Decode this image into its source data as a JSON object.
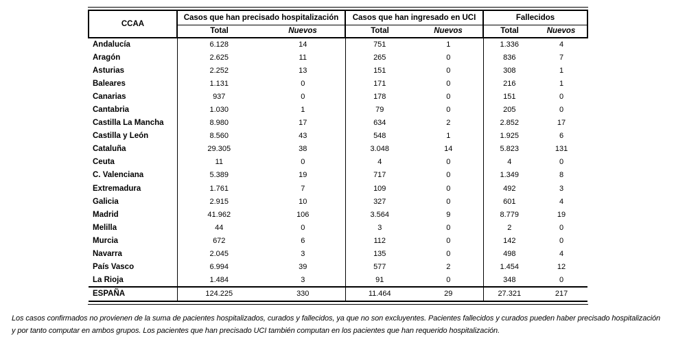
{
  "table": {
    "ccaa_header": "CCAA",
    "groups": [
      {
        "label": "Casos que han precisado hospitalización"
      },
      {
        "label": "Casos que han ingresado en UCI"
      },
      {
        "label": "Fallecidos"
      }
    ],
    "subheaders": {
      "total": "Total",
      "nuevos": "Nuevos"
    },
    "rows": [
      {
        "ccaa": "Andalucía",
        "hosp_total": "6.128",
        "hosp_nuevos": "14",
        "uci_total": "751",
        "uci_nuevos": "1",
        "fall_total": "1.336",
        "fall_nuevos": "4"
      },
      {
        "ccaa": "Aragón",
        "hosp_total": "2.625",
        "hosp_nuevos": "11",
        "uci_total": "265",
        "uci_nuevos": "0",
        "fall_total": "836",
        "fall_nuevos": "7"
      },
      {
        "ccaa": "Asturias",
        "hosp_total": "2.252",
        "hosp_nuevos": "13",
        "uci_total": "151",
        "uci_nuevos": "0",
        "fall_total": "308",
        "fall_nuevos": "1"
      },
      {
        "ccaa": "Baleares",
        "hosp_total": "1.131",
        "hosp_nuevos": "0",
        "uci_total": "171",
        "uci_nuevos": "0",
        "fall_total": "216",
        "fall_nuevos": "1"
      },
      {
        "ccaa": "Canarias",
        "hosp_total": "937",
        "hosp_nuevos": "0",
        "uci_total": "178",
        "uci_nuevos": "0",
        "fall_total": "151",
        "fall_nuevos": "0"
      },
      {
        "ccaa": "Cantabria",
        "hosp_total": "1.030",
        "hosp_nuevos": "1",
        "uci_total": "79",
        "uci_nuevos": "0",
        "fall_total": "205",
        "fall_nuevos": "0"
      },
      {
        "ccaa": "Castilla La Mancha",
        "hosp_total": "8.980",
        "hosp_nuevos": "17",
        "uci_total": "634",
        "uci_nuevos": "2",
        "fall_total": "2.852",
        "fall_nuevos": "17"
      },
      {
        "ccaa": "Castilla y León",
        "hosp_total": "8.560",
        "hosp_nuevos": "43",
        "uci_total": "548",
        "uci_nuevos": "1",
        "fall_total": "1.925",
        "fall_nuevos": "6"
      },
      {
        "ccaa": "Cataluña",
        "hosp_total": "29.305",
        "hosp_nuevos": "38",
        "uci_total": "3.048",
        "uci_nuevos": "14",
        "fall_total": "5.823",
        "fall_nuevos": "131"
      },
      {
        "ccaa": "Ceuta",
        "hosp_total": "11",
        "hosp_nuevos": "0",
        "uci_total": "4",
        "uci_nuevos": "0",
        "fall_total": "4",
        "fall_nuevos": "0"
      },
      {
        "ccaa": "C. Valenciana",
        "hosp_total": "5.389",
        "hosp_nuevos": "19",
        "uci_total": "717",
        "uci_nuevos": "0",
        "fall_total": "1.349",
        "fall_nuevos": "8"
      },
      {
        "ccaa": "Extremadura",
        "hosp_total": "1.761",
        "hosp_nuevos": "7",
        "uci_total": "109",
        "uci_nuevos": "0",
        "fall_total": "492",
        "fall_nuevos": "3"
      },
      {
        "ccaa": "Galicia",
        "hosp_total": "2.915",
        "hosp_nuevos": "10",
        "uci_total": "327",
        "uci_nuevos": "0",
        "fall_total": "601",
        "fall_nuevos": "4"
      },
      {
        "ccaa": "Madrid",
        "hosp_total": "41.962",
        "hosp_nuevos": "106",
        "uci_total": "3.564",
        "uci_nuevos": "9",
        "fall_total": "8.779",
        "fall_nuevos": "19"
      },
      {
        "ccaa": "Melilla",
        "hosp_total": "44",
        "hosp_nuevos": "0",
        "uci_total": "3",
        "uci_nuevos": "0",
        "fall_total": "2",
        "fall_nuevos": "0"
      },
      {
        "ccaa": "Murcia",
        "hosp_total": "672",
        "hosp_nuevos": "6",
        "uci_total": "112",
        "uci_nuevos": "0",
        "fall_total": "142",
        "fall_nuevos": "0"
      },
      {
        "ccaa": "Navarra",
        "hosp_total": "2.045",
        "hosp_nuevos": "3",
        "uci_total": "135",
        "uci_nuevos": "0",
        "fall_total": "498",
        "fall_nuevos": "4"
      },
      {
        "ccaa": "País Vasco",
        "hosp_total": "6.994",
        "hosp_nuevos": "39",
        "uci_total": "577",
        "uci_nuevos": "2",
        "fall_total": "1.454",
        "fall_nuevos": "12"
      },
      {
        "ccaa": "La Rioja",
        "hosp_total": "1.484",
        "hosp_nuevos": "3",
        "uci_total": "91",
        "uci_nuevos": "0",
        "fall_total": "348",
        "fall_nuevos": "0"
      }
    ],
    "total_row": {
      "ccaa": "ESPAÑA",
      "hosp_total": "124.225",
      "hosp_nuevos": "330",
      "uci_total": "11.464",
      "uci_nuevos": "29",
      "fall_total": "27.321",
      "fall_nuevos": "217"
    }
  },
  "footnote": {
    "line1": "Los casos confirmados no provienen de la suma de pacientes hospitalizados, curados y fallecidos, ya que no son excluyentes. Pacientes fallecidos y curados pueden haber precisado hospitalización",
    "line2": "y por tanto computar en ambos grupos. Los pacientes que han precisado UCI también computan en los pacientes que han requerido hospitalización."
  }
}
